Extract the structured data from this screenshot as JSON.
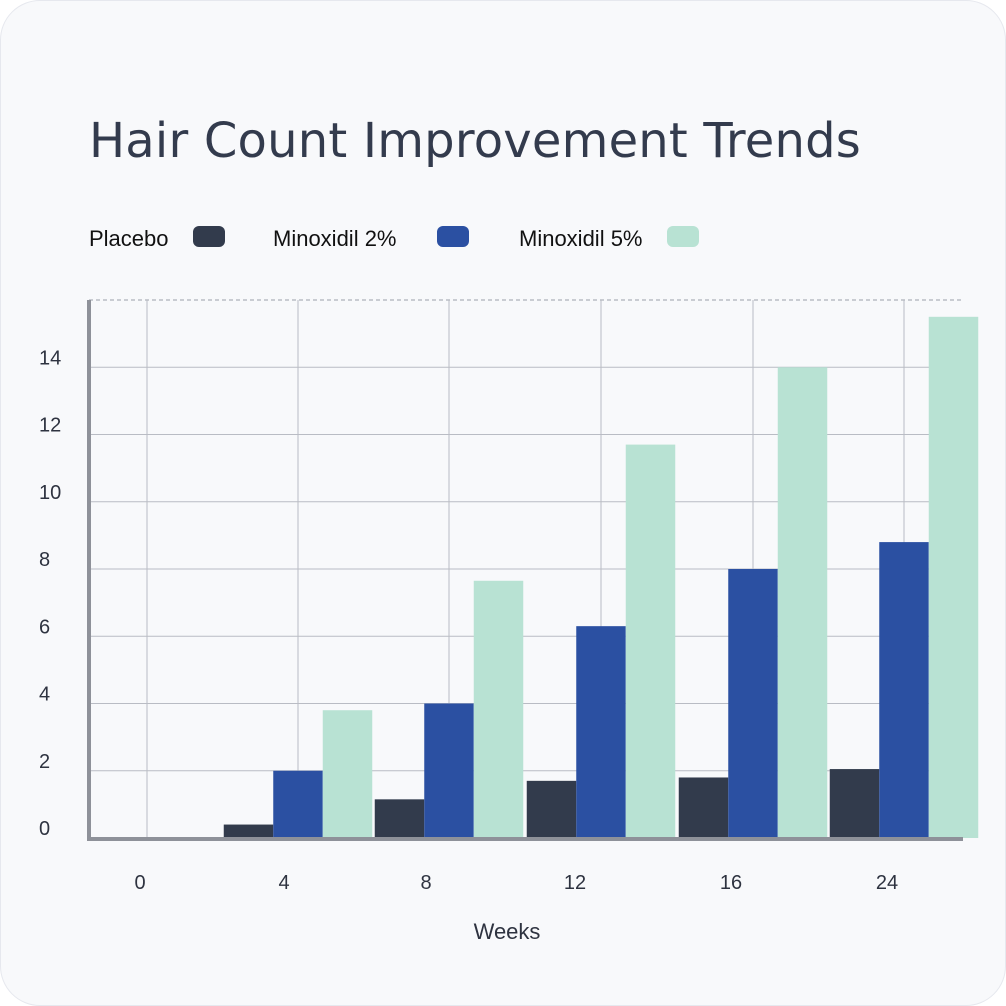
{
  "chart_data": {
    "type": "bar",
    "title": "Hair Count Improvement Trends",
    "xlabel": "Weeks",
    "ylabel": "",
    "categories": [
      "0",
      "4",
      "8",
      "12",
      "16",
      "24"
    ],
    "y_ticks": [
      "0",
      "2",
      "4",
      "6",
      "8",
      "10",
      "12",
      "14"
    ],
    "ylim": [
      0,
      16
    ],
    "grid": true,
    "legend_position": "top-left",
    "series": [
      {
        "name": "Placebo",
        "color": "#323b4c",
        "values": [
          0,
          0.4,
          1.15,
          1.7,
          1.8,
          2.05
        ]
      },
      {
        "name": "Minoxidil 2%",
        "color": "#2b50a2",
        "values": [
          0,
          2.0,
          4.0,
          6.3,
          8.0,
          8.8
        ]
      },
      {
        "name": "Minoxidil 5%",
        "color": "#b8e2d3",
        "values": [
          0,
          3.8,
          7.65,
          11.7,
          14.0,
          15.5
        ]
      }
    ]
  }
}
